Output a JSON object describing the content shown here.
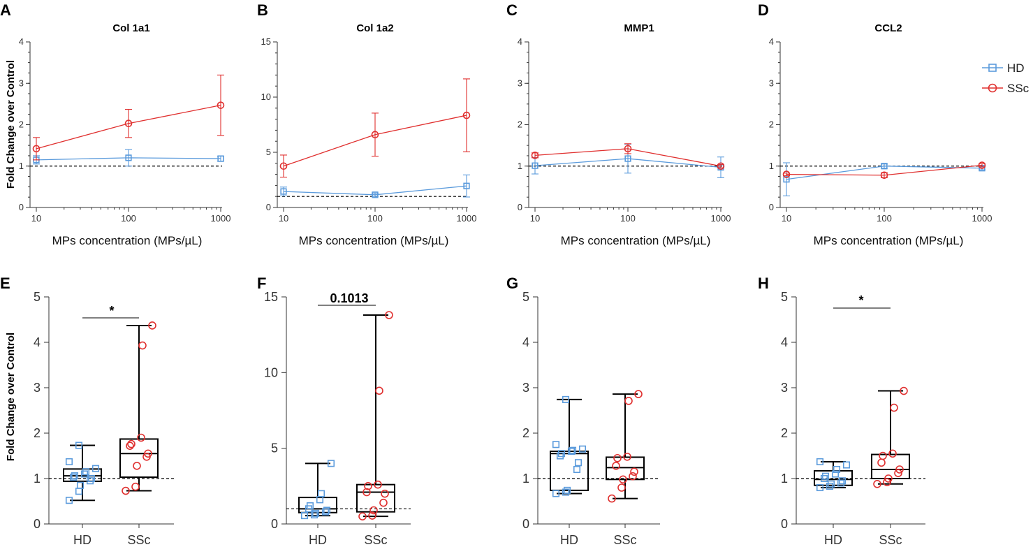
{
  "colors": {
    "hd": "#5b9bdc",
    "ssc": "#e0302f",
    "axis": "#333333",
    "box": "#000000"
  },
  "legend": {
    "items": [
      {
        "key": "hd",
        "label": "HD"
      },
      {
        "key": "ssc",
        "label": "SSc"
      }
    ],
    "placement": "top-right"
  },
  "shared": {
    "ylabel": "Fold Change over Control",
    "xlabel": "MPs concentration (MPs/µL)"
  },
  "chart_data": [
    {
      "id": "A",
      "type": "line",
      "title": "Col 1a1",
      "xscale": "log",
      "x": [
        10,
        100,
        1000
      ],
      "xticks": [
        "10",
        "100",
        "1000"
      ],
      "ylim": [
        0,
        4
      ],
      "yticks": [
        0,
        1,
        2,
        3,
        4
      ],
      "reference_line": 1,
      "xlabel": "MPs concentration (MPs/µL)",
      "ylabel": "Fold Change over Control",
      "series": [
        {
          "name": "HD",
          "values": [
            1.15,
            1.2,
            1.18
          ],
          "err": [
            0.1,
            0.2,
            0.06
          ]
        },
        {
          "name": "SSc",
          "values": [
            1.42,
            2.03,
            2.47
          ],
          "err": [
            0.27,
            0.34,
            0.73
          ]
        }
      ]
    },
    {
      "id": "B",
      "type": "line",
      "title": "Col 1a2",
      "xscale": "log",
      "x": [
        10,
        100,
        1000
      ],
      "xticks": [
        "10",
        "100",
        "1000"
      ],
      "ylim": [
        0,
        15
      ],
      "yticks": [
        0,
        5,
        10,
        15
      ],
      "reference_line": 1,
      "xlabel": "MPs concentration (MPs/µL)",
      "ylabel": "",
      "series": [
        {
          "name": "HD",
          "values": [
            1.45,
            1.15,
            1.95
          ],
          "err": [
            0.4,
            0.15,
            1.0
          ]
        },
        {
          "name": "SSc",
          "values": [
            3.75,
            6.6,
            8.35
          ],
          "err": [
            1.0,
            1.95,
            3.3
          ]
        }
      ]
    },
    {
      "id": "C",
      "type": "line",
      "title": "MMP1",
      "xscale": "log",
      "x": [
        10,
        100,
        1000
      ],
      "xticks": [
        "10",
        "100",
        "1000"
      ],
      "ylim": [
        0,
        4
      ],
      "yticks": [
        0,
        1,
        2,
        3,
        4
      ],
      "reference_line": 1,
      "xlabel": "MPs concentration (MPs/µL)",
      "ylabel": "",
      "series": [
        {
          "name": "HD",
          "values": [
            1.01,
            1.18,
            0.97
          ],
          "err": [
            0.2,
            0.35,
            0.25
          ]
        },
        {
          "name": "SSc",
          "values": [
            1.26,
            1.42,
            1.0
          ],
          "err": [
            0.06,
            0.12,
            0.04
          ]
        }
      ]
    },
    {
      "id": "D",
      "type": "line",
      "title": "CCL2",
      "xscale": "log",
      "x": [
        10,
        100,
        1000
      ],
      "xticks": [
        "10",
        "100",
        "1000"
      ],
      "ylim": [
        0,
        4
      ],
      "yticks": [
        0,
        1,
        2,
        3,
        4
      ],
      "reference_line": 1,
      "xlabel": "MPs concentration (MPs/µL)",
      "ylabel": "",
      "series": [
        {
          "name": "HD",
          "values": [
            0.68,
            1.0,
            0.95
          ],
          "err": [
            0.4,
            0.05,
            0.04
          ]
        },
        {
          "name": "SSc",
          "values": [
            0.8,
            0.78,
            1.02
          ],
          "err": [
            0.03,
            0.06,
            0.04
          ]
        }
      ]
    },
    {
      "id": "E",
      "type": "box",
      "title": "",
      "categories": [
        "HD",
        "SSc"
      ],
      "ylim": [
        0,
        5
      ],
      "yticks": [
        0,
        1,
        2,
        3,
        4,
        5
      ],
      "reference_line": 1,
      "ylabel": "Fold Change over Control",
      "significance": "*",
      "boxes": [
        {
          "name": "HD",
          "min": 0.52,
          "q1": 0.94,
          "median": 1.06,
          "q3": 1.21,
          "max": 1.73,
          "points": [
            0.52,
            0.72,
            0.85,
            0.95,
            1.0,
            1.03,
            1.06,
            1.1,
            1.15,
            1.22,
            1.37,
            1.73
          ]
        },
        {
          "name": "SSc",
          "min": 0.73,
          "q1": 1.03,
          "median": 1.55,
          "q3": 1.87,
          "max": 4.37,
          "points": [
            0.73,
            0.82,
            1.28,
            1.48,
            1.55,
            1.72,
            1.76,
            1.9,
            3.93,
            4.37
          ]
        }
      ]
    },
    {
      "id": "F",
      "type": "box",
      "title": "",
      "categories": [
        "HD",
        "SSc"
      ],
      "ylim": [
        0,
        15
      ],
      "yticks": [
        0,
        5,
        10,
        15
      ],
      "reference_line": 1,
      "ylabel": "",
      "significance": "0.1013",
      "boxes": [
        {
          "name": "HD",
          "min": 0.55,
          "q1": 0.75,
          "median": 1.0,
          "q3": 1.75,
          "max": 4.0,
          "points": [
            0.55,
            0.6,
            0.7,
            0.8,
            0.9,
            1.0,
            1.2,
            1.6,
            2.0,
            4.0
          ]
        },
        {
          "name": "SSc",
          "min": 0.5,
          "q1": 0.8,
          "median": 2.1,
          "q3": 2.6,
          "max": 13.8,
          "points": [
            0.5,
            0.55,
            0.9,
            1.4,
            2.0,
            2.1,
            2.5,
            2.6,
            8.8,
            13.8
          ]
        }
      ]
    },
    {
      "id": "G",
      "type": "box",
      "title": "",
      "categories": [
        "HD",
        "SSc"
      ],
      "ylim": [
        0,
        5
      ],
      "yticks": [
        0,
        1,
        2,
        3,
        4,
        5
      ],
      "reference_line": 1,
      "ylabel": "",
      "boxes": [
        {
          "name": "HD",
          "min": 0.67,
          "q1": 0.74,
          "median": 1.55,
          "q3": 1.6,
          "max": 2.74,
          "points": [
            0.67,
            0.7,
            0.74,
            1.2,
            1.35,
            1.5,
            1.55,
            1.6,
            1.62,
            1.65,
            1.75,
            2.74
          ]
        },
        {
          "name": "SSc",
          "min": 0.56,
          "q1": 0.98,
          "median": 1.24,
          "q3": 1.47,
          "max": 2.86,
          "points": [
            0.56,
            0.8,
            0.98,
            1.05,
            1.15,
            1.28,
            1.45,
            1.48,
            2.71,
            2.86
          ]
        }
      ]
    },
    {
      "id": "H",
      "type": "box",
      "title": "",
      "categories": [
        "HD",
        "SSc"
      ],
      "ylim": [
        0,
        5
      ],
      "yticks": [
        0,
        1,
        2,
        3,
        4,
        5
      ],
      "reference_line": 1,
      "ylabel": "",
      "significance": "*",
      "boxes": [
        {
          "name": "HD",
          "min": 0.8,
          "q1": 0.85,
          "median": 0.98,
          "q3": 1.17,
          "max": 1.37,
          "points": [
            0.8,
            0.83,
            0.88,
            0.9,
            0.95,
            1.0,
            1.05,
            1.1,
            1.2,
            1.3,
            1.37
          ]
        },
        {
          "name": "SSc",
          "min": 0.88,
          "q1": 1.0,
          "median": 1.2,
          "q3": 1.53,
          "max": 2.93,
          "points": [
            0.88,
            0.92,
            1.0,
            1.12,
            1.2,
            1.35,
            1.5,
            1.55,
            2.56,
            2.93
          ]
        }
      ]
    }
  ]
}
